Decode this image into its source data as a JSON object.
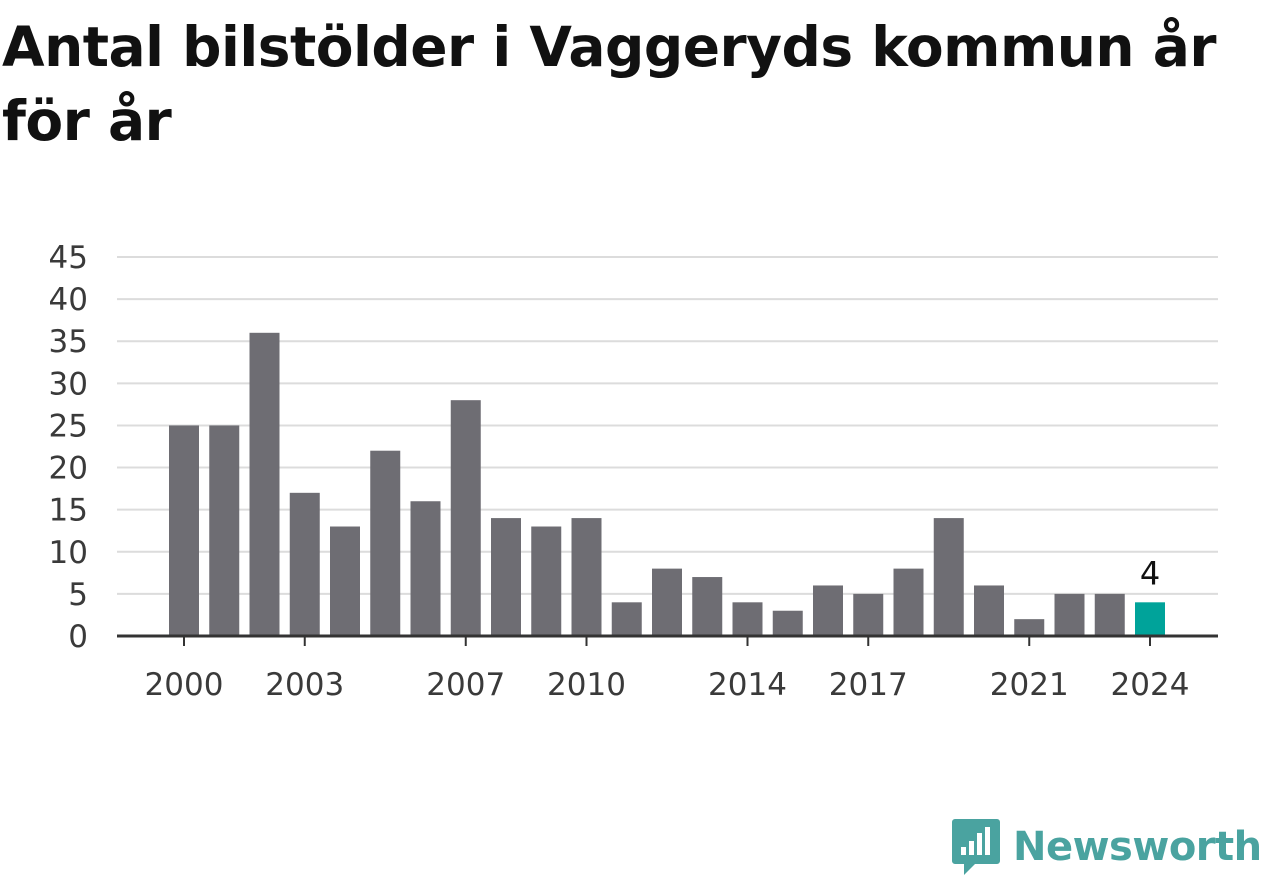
{
  "title": "Antal bilstölder i Vaggeryds kommun år för år",
  "brand": {
    "name": "Newsworthy",
    "color": "#4aa3a0",
    "icon": "newsworthy-logo-icon"
  },
  "colors": {
    "bar": "#6e6d73",
    "highlight": "#00a39a",
    "grid": "#dcdcdc",
    "axis": "#333333"
  },
  "chart_data": {
    "type": "bar",
    "title": "Antal bilstölder i Vaggeryds kommun år för år",
    "xlabel": "",
    "ylabel": "",
    "categories": [
      "2000",
      "2001",
      "2002",
      "2003",
      "2004",
      "2005",
      "2006",
      "2007",
      "2008",
      "2009",
      "2010",
      "2011",
      "2012",
      "2013",
      "2014",
      "2015",
      "2016",
      "2017",
      "2018",
      "2019",
      "2020",
      "2021",
      "2022",
      "2023",
      "2024"
    ],
    "values": [
      25,
      25,
      36,
      17,
      13,
      22,
      16,
      28,
      14,
      13,
      14,
      4,
      8,
      7,
      4,
      3,
      6,
      5,
      8,
      14,
      6,
      2,
      5,
      5,
      4
    ],
    "ylim": [
      0,
      45
    ],
    "yticks": [
      0,
      5,
      10,
      15,
      20,
      25,
      30,
      35,
      40,
      45
    ],
    "xtick_labels": [
      "2000",
      "2003",
      "2007",
      "2010",
      "2014",
      "2017",
      "2021",
      "2024"
    ],
    "highlight_category": "2024",
    "data_labels": [
      {
        "category": "2024",
        "text": "4"
      }
    ],
    "grid": true,
    "legend": "none"
  }
}
